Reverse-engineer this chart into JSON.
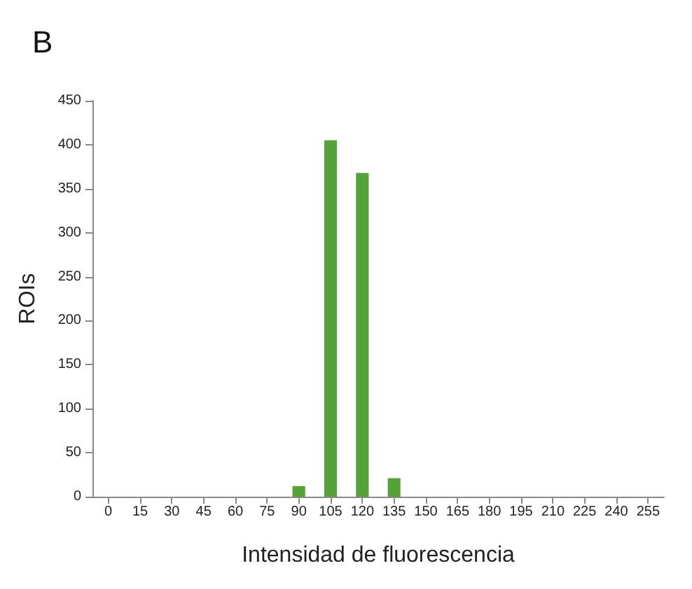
{
  "chart_data": {
    "type": "bar",
    "title": "B",
    "xlabel": "Intensidad de fluorescencia",
    "ylabel": "ROIs",
    "categories": [
      "0",
      "15",
      "30",
      "45",
      "60",
      "75",
      "90",
      "105",
      "120",
      "135",
      "150",
      "165",
      "180",
      "195",
      "210",
      "225",
      "240",
      "255"
    ],
    "values": [
      0,
      0,
      0,
      0,
      0,
      0,
      12,
      405,
      368,
      21,
      0,
      0,
      0,
      0,
      0,
      0,
      0,
      0
    ],
    "color": "#56a23a",
    "ylim": [
      0,
      450
    ],
    "yticks": [
      0,
      50,
      100,
      150,
      200,
      250,
      300,
      350,
      400,
      450
    ],
    "grid": false
  }
}
